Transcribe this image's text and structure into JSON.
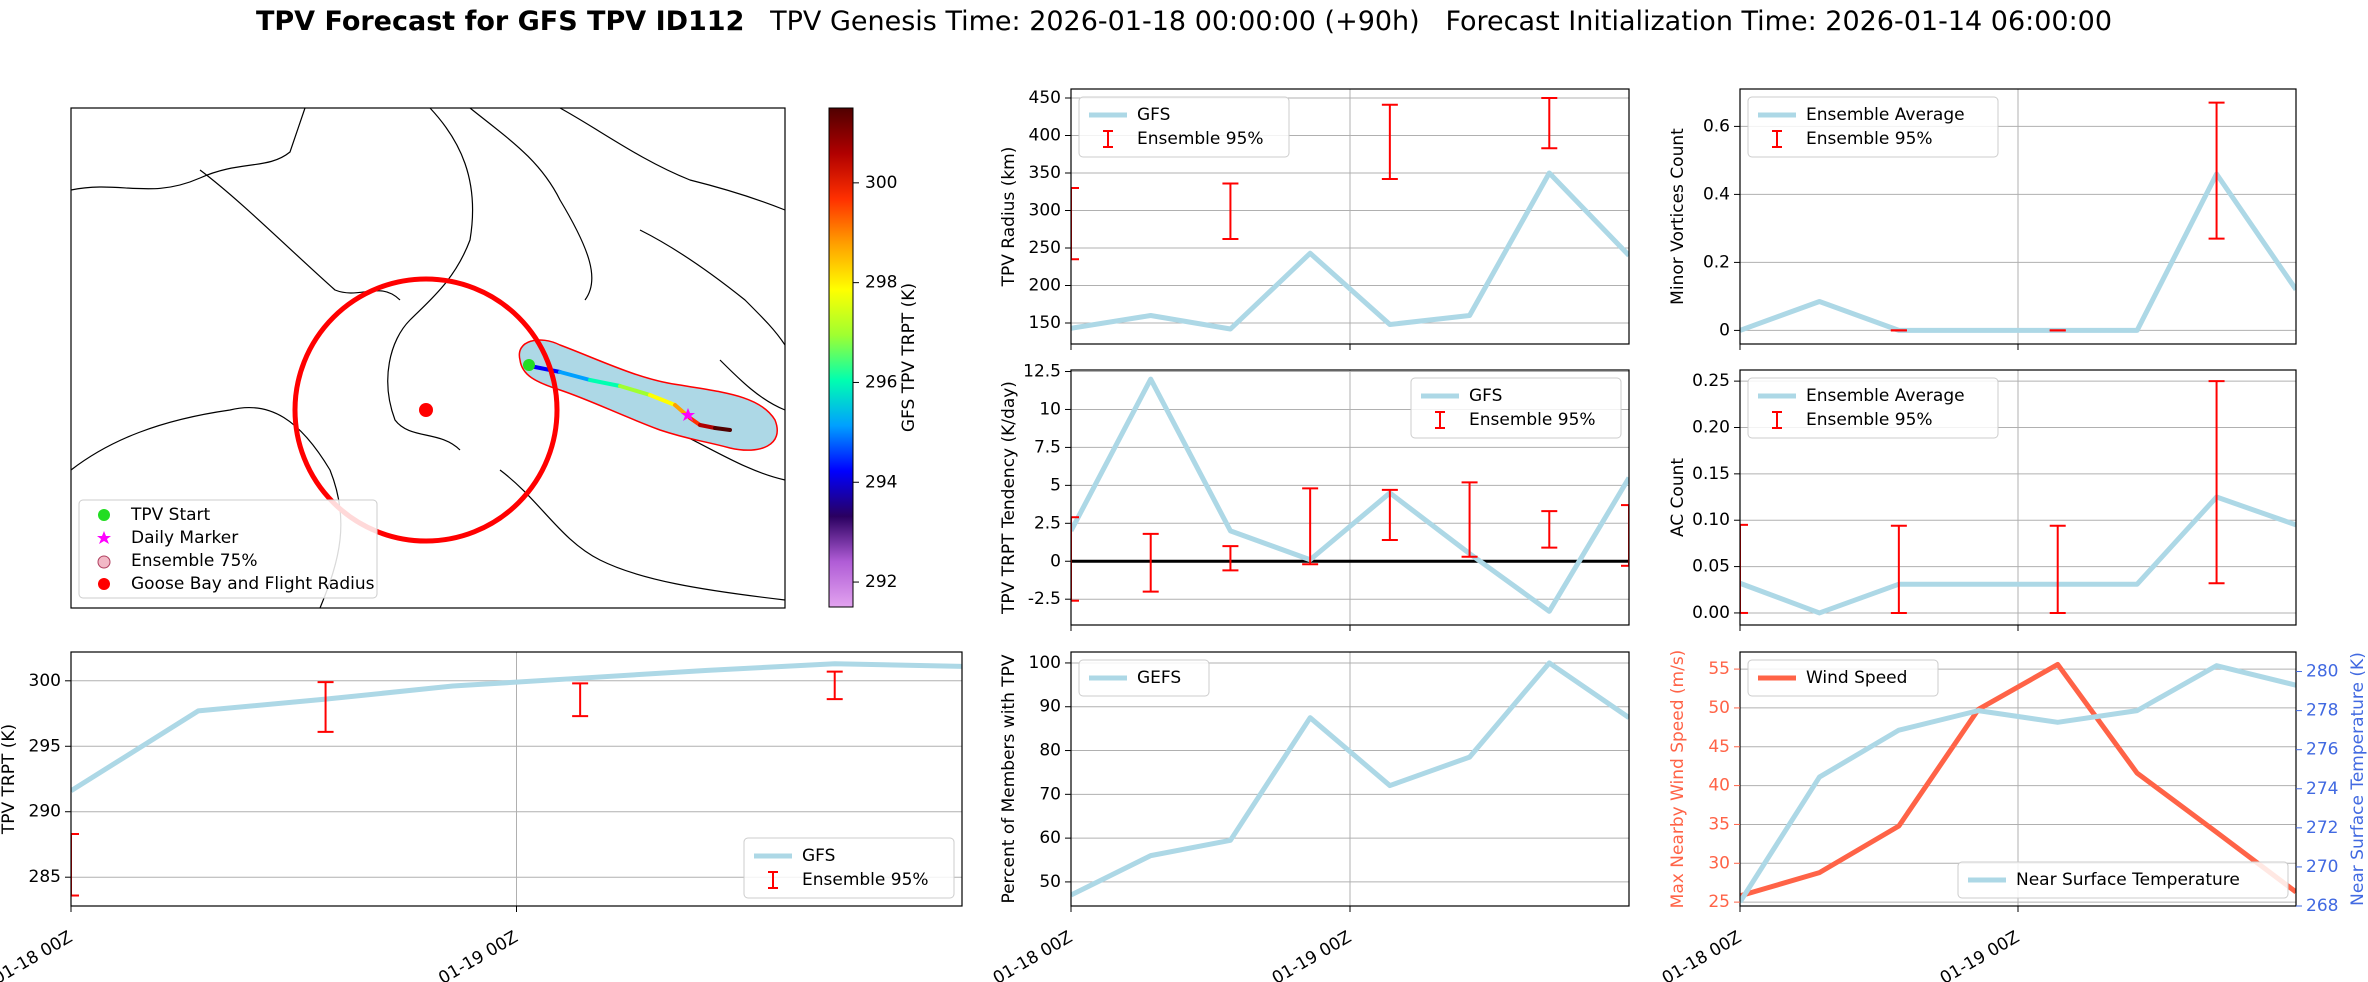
{
  "header": {
    "title_bold": "TPV Forecast for GFS TPV ID112",
    "genesis": "TPV Genesis Time: 2026-01-18 00:00:00 (+90h)",
    "init": "Forecast Initialization Time: 2026-01-14 06:00:00"
  },
  "colors": {
    "gfs": "#add8e6",
    "ens": "#ff0000",
    "wind": "#ff6347",
    "temp_axis": "#4169e1",
    "grid": "#b0b0b0",
    "track_outline": "#ff0000",
    "track_fill": "#add8e6",
    "colormap": [
      "#e2a3ef",
      "#b05cd6",
      "#2a0060",
      "#0000ff",
      "#00a0ff",
      "#00ffb0",
      "#a0ff30",
      "#ffff00",
      "#ffa000",
      "#ff3000",
      "#b00000",
      "#500000"
    ]
  },
  "map": {
    "colorbar": {
      "label": "GFS TPV TRPT (K)",
      "range": [
        291.5,
        301.5
      ],
      "ticks": [
        "292",
        "294",
        "296",
        "298",
        "300"
      ]
    },
    "legend": [
      {
        "label": "TPV Start",
        "marker": "green-dot"
      },
      {
        "label": "Daily Marker",
        "marker": "magenta-star"
      },
      {
        "label": "Ensemble 75%",
        "marker": "pink-circle"
      },
      {
        "label": "Goose Bay and Flight Radius",
        "marker": "red-dot"
      }
    ]
  },
  "x_ticks": [
    "01-18 00Z",
    "01-19 00Z"
  ],
  "chart_data": [
    {
      "id": "trpt_timeseries",
      "type": "line",
      "xlabel": "",
      "ylabel": "TPV TRPT (K)",
      "x": [
        0,
        1,
        2,
        3,
        4,
        5,
        6
      ],
      "xlim": [
        0,
        7
      ],
      "ylim": [
        282.8,
        302.2
      ],
      "yticks": [
        285,
        290,
        295,
        300
      ],
      "series": [
        {
          "name": "GFS",
          "values": [
            291.6,
            297.7,
            298.6,
            299.6,
            300.2,
            300.8,
            301.3,
            301.1
          ],
          "x": [
            0,
            1,
            2,
            3,
            4,
            5,
            6,
            7
          ]
        },
        {
          "name": "Ensemble 95%",
          "type": "errorbar",
          "x": [
            0,
            2,
            4,
            6
          ],
          "low": [
            283.6,
            296.1,
            297.3,
            298.6
          ],
          "high": [
            288.3,
            299.9,
            299.8,
            300.7
          ]
        }
      ],
      "legend": "lower right",
      "grid": true
    },
    {
      "id": "radius",
      "type": "line",
      "ylabel": "TPV Radius (km)",
      "x": [
        0,
        1,
        2,
        3,
        4,
        5,
        6,
        7
      ],
      "xlim": [
        0,
        7
      ],
      "ylim": [
        122,
        462
      ],
      "yticks": [
        150,
        200,
        250,
        300,
        350,
        400,
        450
      ],
      "series": [
        {
          "name": "GFS",
          "values": [
            143,
            160,
            142,
            243,
            148,
            160,
            350,
            240
          ]
        },
        {
          "name": "Ensemble 95%",
          "type": "errorbar",
          "x": [
            0,
            2,
            4,
            6
          ],
          "low": [
            235,
            262,
            342,
            383
          ],
          "high": [
            330,
            336,
            441,
            450
          ]
        }
      ],
      "legend": "upper left",
      "grid": true
    },
    {
      "id": "tendency",
      "type": "line",
      "ylabel": "TPV TRPT Tendency (K/day)",
      "x": [
        0,
        1,
        2,
        3,
        4,
        5,
        6,
        7
      ],
      "xlim": [
        0,
        7
      ],
      "ylim": [
        -4.2,
        12.6
      ],
      "yticks": [
        -2.5,
        0.0,
        2.5,
        5.0,
        7.5,
        10.0,
        12.5
      ],
      "series": [
        {
          "name": "GFS",
          "values": [
            2.0,
            12.0,
            2.0,
            0.1,
            4.5,
            0.5,
            -3.3,
            5.5
          ]
        },
        {
          "name": "Ensemble 95%",
          "type": "errorbar",
          "x": [
            0,
            1,
            2,
            3,
            4,
            5,
            6,
            7
          ],
          "low": [
            -2.6,
            -2.0,
            -0.6,
            -0.2,
            1.4,
            0.3,
            0.9,
            -0.3
          ],
          "high": [
            2.9,
            1.8,
            1.0,
            4.8,
            4.7,
            5.2,
            3.3,
            3.7
          ]
        }
      ],
      "zero_line": true,
      "legend": "upper right",
      "grid": true
    },
    {
      "id": "percent_members",
      "type": "line",
      "ylabel": "Percent of Members with TPV",
      "x": [
        0,
        1,
        2,
        3,
        4,
        5,
        6,
        7
      ],
      "xlim": [
        0,
        7
      ],
      "ylim": [
        44.5,
        102.5
      ],
      "yticks": [
        50,
        60,
        70,
        80,
        90,
        100
      ],
      "series": [
        {
          "name": "GEFS",
          "values": [
            47,
            56,
            59.5,
            87.5,
            72,
            78.5,
            100,
            87.5
          ]
        }
      ],
      "legend": "upper left",
      "grid": true
    },
    {
      "id": "minor_vortices",
      "type": "line",
      "ylabel": "Minor Vortices Count",
      "x": [
        0,
        1,
        2,
        3,
        4,
        5,
        6,
        7
      ],
      "xlim": [
        0,
        7
      ],
      "ylim": [
        -0.04,
        0.71
      ],
      "yticks": [
        0.0,
        0.2,
        0.4,
        0.6
      ],
      "series": [
        {
          "name": "Ensemble Average",
          "values": [
            0.0,
            0.085,
            0.0,
            0.0,
            0.0,
            0.0,
            0.46,
            0.12
          ]
        },
        {
          "name": "Ensemble 95%",
          "type": "errorbar",
          "x": [
            2,
            4,
            6
          ],
          "low": [
            0.0,
            0.0,
            0.27
          ],
          "high": [
            0.0,
            0.0,
            0.67
          ]
        }
      ],
      "legend": "upper left",
      "grid": true
    },
    {
      "id": "ac_count",
      "type": "line",
      "ylabel": "AC Count",
      "x": [
        0,
        1,
        2,
        3,
        4,
        5,
        6,
        7
      ],
      "xlim": [
        0,
        7
      ],
      "ylim": [
        -0.013,
        0.262
      ],
      "yticks": [
        0.0,
        0.05,
        0.1,
        0.15,
        0.2,
        0.25
      ],
      "yticklabels": [
        "0.00",
        "0.05",
        "0.10",
        "0.15",
        "0.20",
        "0.25"
      ],
      "series": [
        {
          "name": "Ensemble Average",
          "values": [
            0.032,
            0.0,
            0.031,
            0.031,
            0.031,
            0.031,
            0.125,
            0.095
          ]
        },
        {
          "name": "Ensemble 95%",
          "type": "errorbar",
          "x": [
            0,
            2,
            4,
            6
          ],
          "low": [
            0.0,
            0.0,
            0.0,
            0.032
          ],
          "high": [
            0.095,
            0.094,
            0.094,
            0.25
          ]
        }
      ],
      "legend": "upper left",
      "grid": true
    },
    {
      "id": "wind_temp",
      "type": "line",
      "ylabel": "Max Nearby Wind Speed (m/s)",
      "ylabel2": "Near Surface Temperature (K)",
      "x": [
        0,
        1,
        2,
        3,
        4,
        5,
        6,
        7
      ],
      "xlim": [
        0,
        7
      ],
      "ylim": [
        24.5,
        57.2
      ],
      "yticks": [
        25,
        30,
        35,
        40,
        45,
        50,
        55
      ],
      "ylim2": [
        268,
        281
      ],
      "yticks2": [
        268,
        270,
        272,
        274,
        276,
        278,
        280
      ],
      "series": [
        {
          "name": "Wind Speed",
          "axis": "left",
          "values": [
            25.8,
            28.8,
            34.8,
            49.8,
            55.6,
            41.6,
            34.0,
            26.3
          ]
        },
        {
          "name": "Near Surface Temperature",
          "axis": "right",
          "values": [
            268.2,
            274.6,
            277.0,
            278.0,
            277.4,
            278.0,
            280.3,
            279.3
          ]
        }
      ],
      "legend_left": "upper left",
      "legend_right": "lower right",
      "grid": true
    }
  ]
}
